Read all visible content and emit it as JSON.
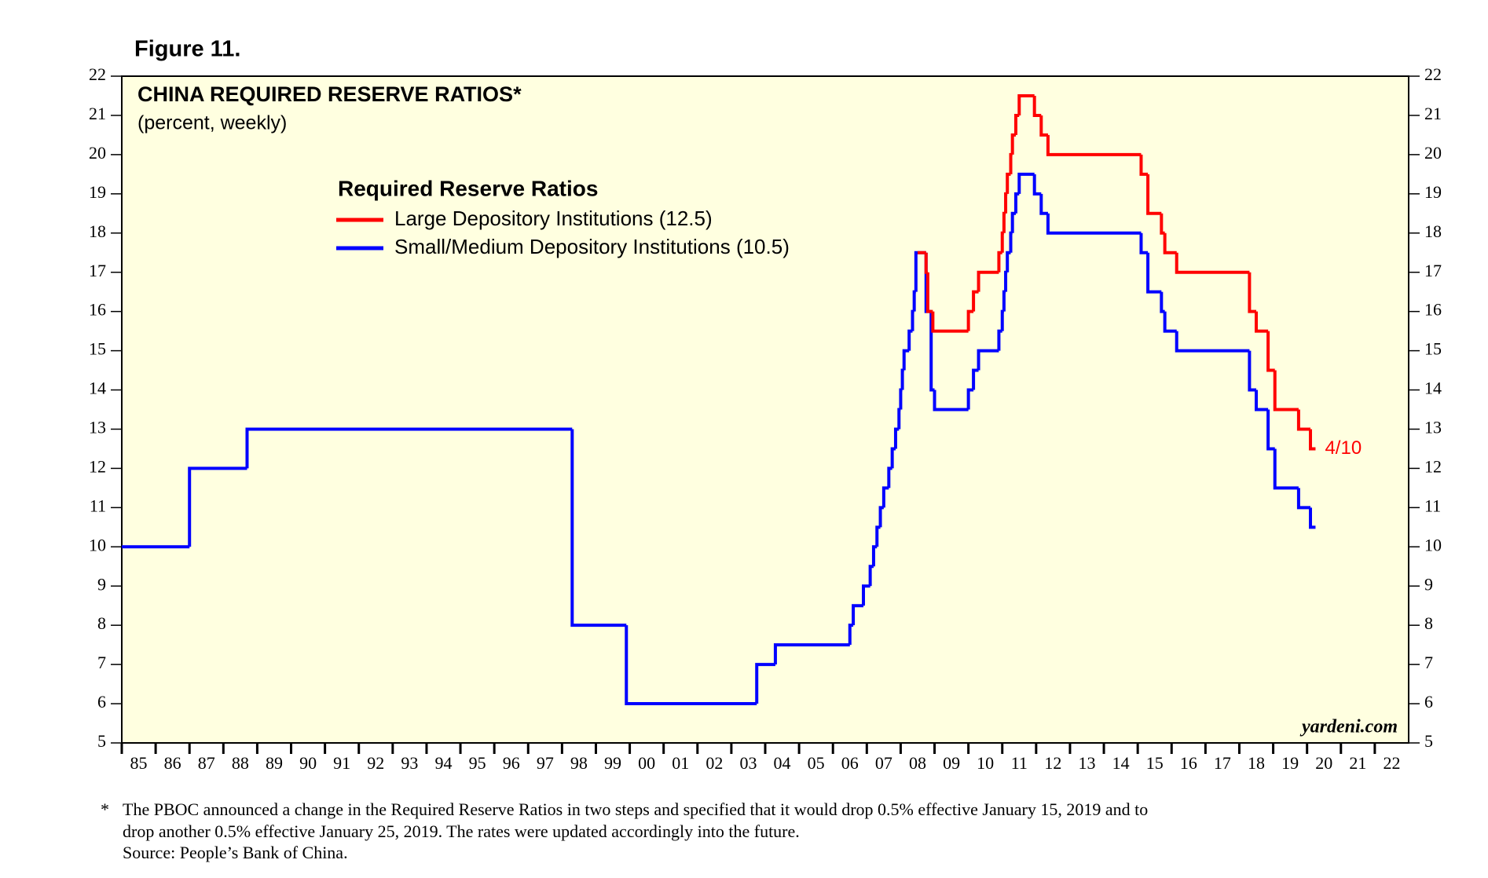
{
  "figure_label": "Figure 11.",
  "chart_data": {
    "type": "line",
    "step": "post",
    "title": "CHINA REQUIRED RESERVE RATIOS*",
    "subtitle": "(percent, weekly)",
    "legend_title": "Required Reserve Ratios",
    "source_label": "yardeni.com",
    "annotation": {
      "text": "4/10",
      "series": 0
    },
    "background": "#ffffe0",
    "xlim": [
      1985,
      2023
    ],
    "ylim": [
      5,
      22
    ],
    "yticks": [
      5,
      6,
      7,
      8,
      9,
      10,
      11,
      12,
      13,
      14,
      15,
      16,
      17,
      18,
      19,
      20,
      21,
      22
    ],
    "xticks": [
      {
        "value": 1985,
        "label": "85"
      },
      {
        "value": 1986,
        "label": "86"
      },
      {
        "value": 1987,
        "label": "87"
      },
      {
        "value": 1988,
        "label": "88"
      },
      {
        "value": 1989,
        "label": "89"
      },
      {
        "value": 1990,
        "label": "90"
      },
      {
        "value": 1991,
        "label": "91"
      },
      {
        "value": 1992,
        "label": "92"
      },
      {
        "value": 1993,
        "label": "93"
      },
      {
        "value": 1994,
        "label": "94"
      },
      {
        "value": 1995,
        "label": "95"
      },
      {
        "value": 1996,
        "label": "96"
      },
      {
        "value": 1997,
        "label": "97"
      },
      {
        "value": 1998,
        "label": "98"
      },
      {
        "value": 1999,
        "label": "99"
      },
      {
        "value": 2000,
        "label": "00"
      },
      {
        "value": 2001,
        "label": "01"
      },
      {
        "value": 2002,
        "label": "02"
      },
      {
        "value": 2003,
        "label": "03"
      },
      {
        "value": 2004,
        "label": "04"
      },
      {
        "value": 2005,
        "label": "05"
      },
      {
        "value": 2006,
        "label": "06"
      },
      {
        "value": 2007,
        "label": "07"
      },
      {
        "value": 2008,
        "label": "08"
      },
      {
        "value": 2009,
        "label": "09"
      },
      {
        "value": 2010,
        "label": "10"
      },
      {
        "value": 2011,
        "label": "11"
      },
      {
        "value": 2012,
        "label": "12"
      },
      {
        "value": 2013,
        "label": "13"
      },
      {
        "value": 2014,
        "label": "14"
      },
      {
        "value": 2015,
        "label": "15"
      },
      {
        "value": 2016,
        "label": "16"
      },
      {
        "value": 2017,
        "label": "17"
      },
      {
        "value": 2018,
        "label": "18"
      },
      {
        "value": 2019,
        "label": "19"
      },
      {
        "value": 2020,
        "label": "20"
      },
      {
        "value": 2021,
        "label": "21"
      },
      {
        "value": 2022,
        "label": "22"
      }
    ],
    "series": [
      {
        "name": "Large Depository Institutions (12.5)",
        "color": "#ff0000",
        "x": [
          2008.5,
          2008.75,
          2008.8,
          2008.95,
          2010.0,
          2010.15,
          2010.3,
          2010.9,
          2011.0,
          2011.05,
          2011.1,
          2011.15,
          2011.25,
          2011.3,
          2011.4,
          2011.5,
          2011.95,
          2012.15,
          2012.35,
          2015.1,
          2015.3,
          2015.7,
          2015.8,
          2016.15,
          2018.3,
          2018.5,
          2018.85,
          2019.05,
          2019.75,
          2020.1,
          2020.25
        ],
        "values": [
          17.5,
          17,
          16,
          15.5,
          16,
          16.5,
          17,
          17.5,
          18,
          18.5,
          19,
          19.5,
          20,
          20.5,
          21,
          21.5,
          21,
          20.5,
          20,
          19.5,
          18.5,
          18,
          17.5,
          17,
          16,
          15.5,
          14.5,
          13.5,
          13,
          12.5,
          12.5
        ]
      },
      {
        "name": "Small/Medium Depository Institutions (10.5)",
        "color": "#0000ff",
        "x": [
          1985.0,
          1987.0,
          1988.7,
          1998.3,
          1999.9,
          2003.75,
          2004.3,
          2006.5,
          2006.6,
          2006.9,
          2007.1,
          2007.2,
          2007.3,
          2007.4,
          2007.5,
          2007.65,
          2007.75,
          2007.85,
          2007.95,
          2008.0,
          2008.05,
          2008.1,
          2008.25,
          2008.35,
          2008.4,
          2008.45,
          2008.75,
          2008.9,
          2009.0,
          2010.0,
          2010.15,
          2010.3,
          2010.9,
          2011.0,
          2011.05,
          2011.1,
          2011.15,
          2011.25,
          2011.3,
          2011.4,
          2011.5,
          2011.95,
          2012.15,
          2012.35,
          2015.1,
          2015.3,
          2015.7,
          2015.8,
          2016.15,
          2018.3,
          2018.5,
          2018.85,
          2019.05,
          2019.75,
          2020.1,
          2020.25
        ],
        "values": [
          10,
          12,
          13,
          8,
          6,
          7,
          7.5,
          8,
          8.5,
          9,
          9.5,
          10,
          10.5,
          11,
          11.5,
          12,
          12.5,
          13,
          13.5,
          14,
          14.5,
          15,
          15.5,
          16,
          16.5,
          17.5,
          16,
          14,
          13.5,
          14,
          14.5,
          15,
          15.5,
          16,
          16.5,
          17,
          17.5,
          18,
          18.5,
          19,
          19.5,
          19,
          18.5,
          18,
          17.5,
          16.5,
          16,
          15.5,
          15,
          14,
          13.5,
          12.5,
          11.5,
          11,
          10.5,
          10.5
        ]
      }
    ]
  },
  "footnote": {
    "marker": "*",
    "lines": [
      "The PBOC announced a change in the Required Reserve Ratios in two steps and specified that it would drop 0.5% effective January 15, 2019 and to",
      "drop another 0.5% effective January 25, 2019. The rates were updated accordingly into the future.",
      "Source: People’s Bank of China."
    ]
  }
}
